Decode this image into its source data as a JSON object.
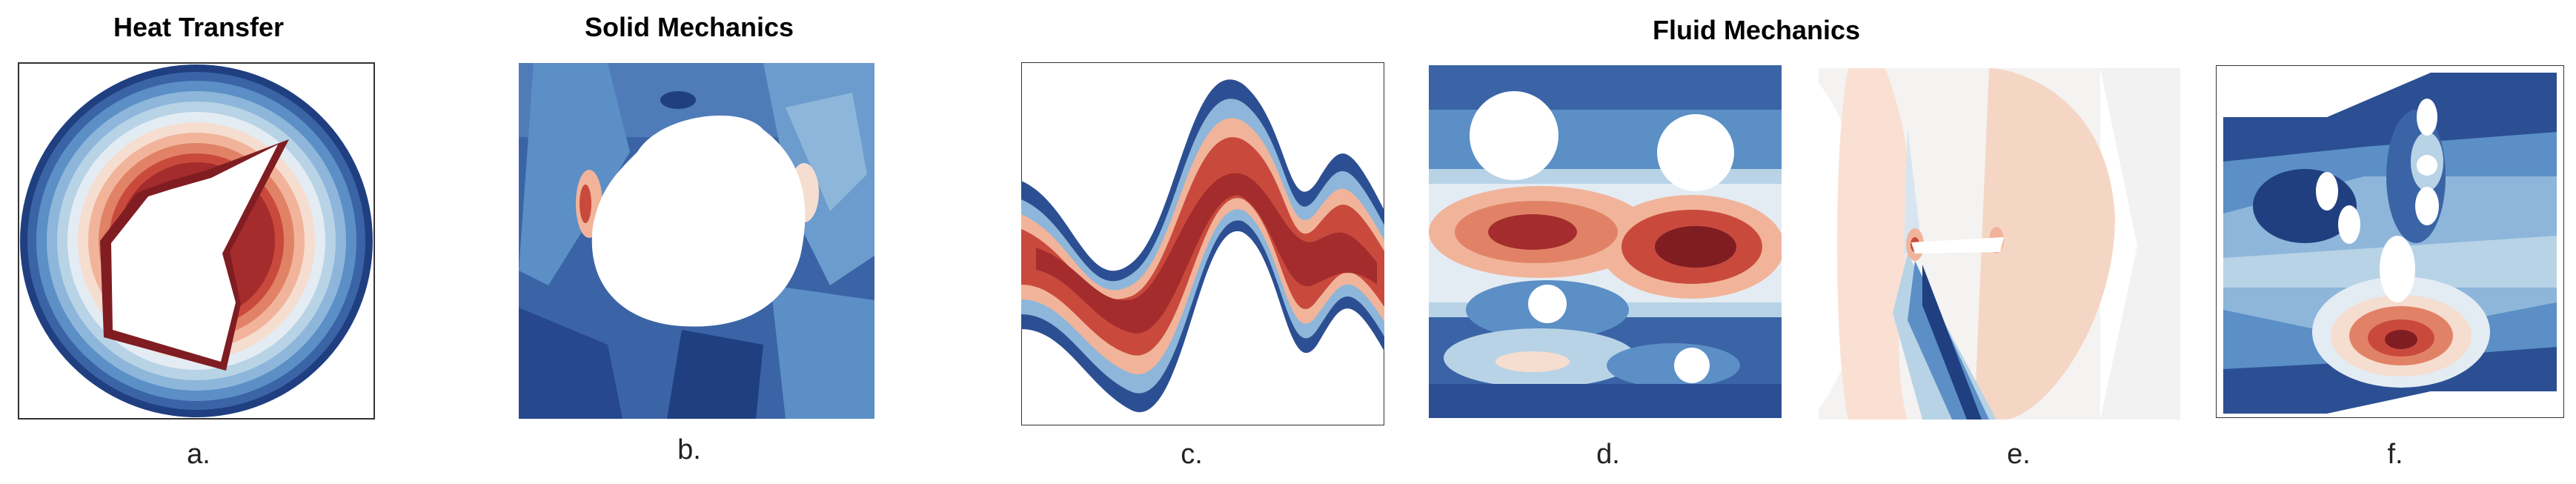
{
  "headings": {
    "heat_transfer": "Heat Transfer",
    "solid_mechanics": "Solid Mechanics",
    "fluid_mechanics": "Fluid Mechanics"
  },
  "panel_labels": {
    "a": "a.",
    "b": "b.",
    "c": "c.",
    "d": "d.",
    "e": "e.",
    "f": "f."
  },
  "colors": {
    "dark_red": "#7f1d22",
    "red": "#c94a3c",
    "light_red": "#f1b49a",
    "white": "#f7f4f1",
    "light_blue": "#b8d3e6",
    "mid_blue": "#5b8fc6",
    "dark_blue": "#1f3f80"
  }
}
